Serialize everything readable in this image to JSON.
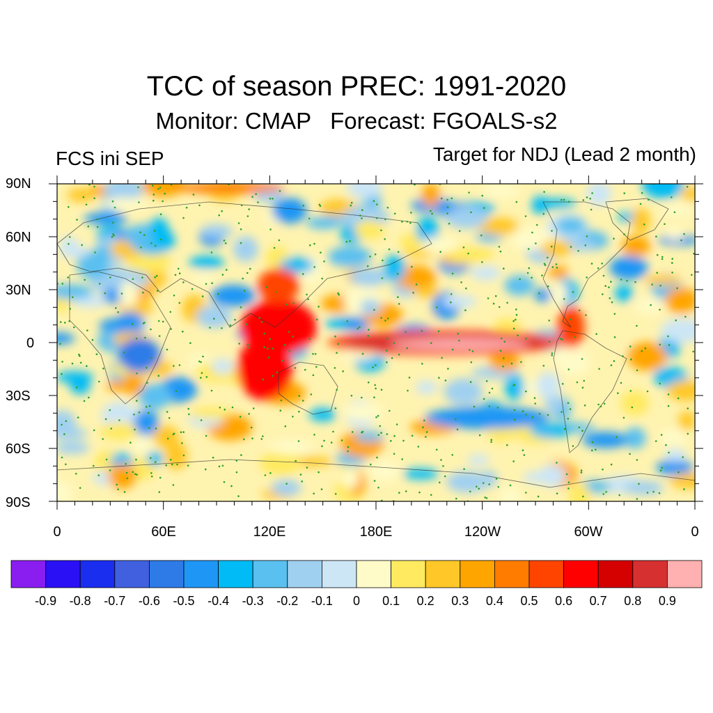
{
  "header": {
    "title": "TCC of season PREC: 1991-2020",
    "subtitle": "Monitor: CMAP   Forecast: FGOALS-s2",
    "left_label": "FCS ini SEP",
    "right_label": "Target for NDJ (Lead 2 month)"
  },
  "map": {
    "projection": "cylindrical-equidistant",
    "lat_labels": [
      "90N",
      "60N",
      "30N",
      "0",
      "30S",
      "60S",
      "90S"
    ],
    "lat_values": [
      90,
      60,
      30,
      0,
      -30,
      -60,
      -90
    ],
    "lon_labels": [
      "0",
      "60E",
      "120E",
      "180E",
      "120W",
      "60W",
      "0"
    ],
    "lon_values": [
      0,
      60,
      120,
      180,
      240,
      300,
      360
    ],
    "stippling": "significant points marked with green dots"
  },
  "colorbar": {
    "levels": [
      "-0.9",
      "-0.8",
      "-0.7",
      "-0.6",
      "-0.5",
      "-0.4",
      "-0.3",
      "-0.2",
      "-0.1",
      "0",
      "0.1",
      "0.2",
      "0.3",
      "0.4",
      "0.5",
      "0.6",
      "0.7",
      "0.8",
      "0.9"
    ],
    "colors": [
      "#8a1ef0",
      "#2a10f5",
      "#1a2ef0",
      "#4060e0",
      "#2e7be8",
      "#1e96f5",
      "#00bbf5",
      "#5ac0f0",
      "#a0d0f0",
      "#cce6f6",
      "#fffbc8",
      "#ffea60",
      "#ffc828",
      "#ffa500",
      "#ff7c00",
      "#ff4400",
      "#ff0000",
      "#d50000",
      "#d63030",
      "#ffb0b0"
    ]
  }
}
